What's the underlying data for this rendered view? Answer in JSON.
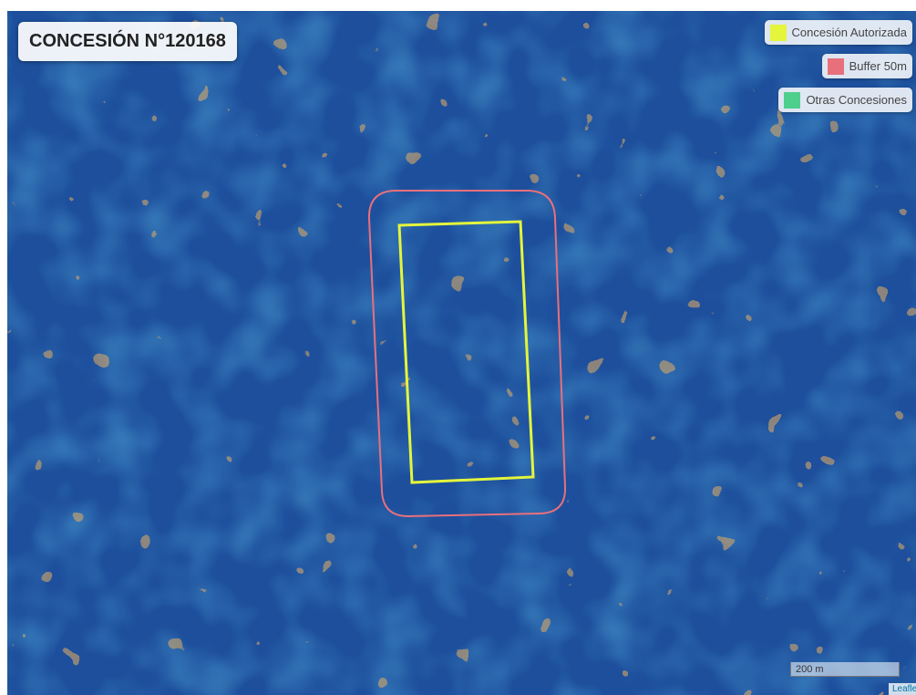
{
  "title": "CONCESIÓN N°120168",
  "legend": [
    {
      "label": "Concesión Autorizada",
      "color": "#e4f53c"
    },
    {
      "label": "Buffer 50m",
      "color": "#e8707c"
    },
    {
      "label": "Otras Concesiones",
      "color": "#4ecf8c"
    }
  ],
  "scale": "200 m",
  "attribution": "Leaflet"
}
